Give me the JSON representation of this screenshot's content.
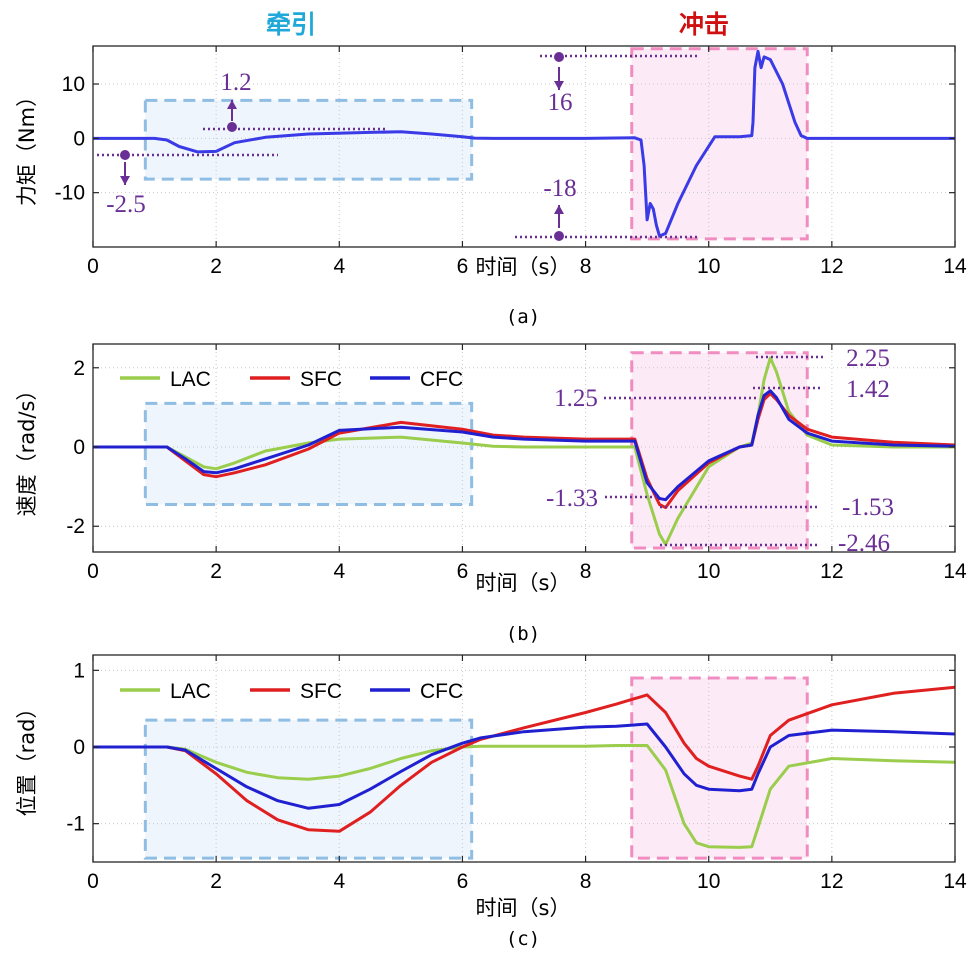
{
  "colors": {
    "torque": "#3a3ae6",
    "LAC": "#9acd4c",
    "SFC": "#e02020",
    "CFC": "#2020d0",
    "traction_box": "#8fbde3",
    "traction_fill": "#eef5fc",
    "impact_box": "#f08cc0",
    "impact_fill": "#fcebf6",
    "traction_title": "#1fa8d8",
    "impact_title": "#d01010",
    "annotation": "#6a2f94"
  },
  "titles": {
    "traction": "牵引",
    "impact": "冲击"
  },
  "chart_data": [
    {
      "type": "line",
      "subplot_label": "(a)",
      "xlabel": "时间（s）",
      "ylabel": "力矩（Nm）",
      "xlim": [
        0,
        14
      ],
      "ylim": [
        -20,
        17
      ],
      "xticks": [
        0,
        2,
        4,
        6,
        8,
        10,
        12,
        14
      ],
      "yticks": [
        -10,
        0,
        10
      ],
      "grid": true,
      "series": [
        {
          "key": "torque",
          "x": [
            0,
            1.0,
            1.2,
            1.4,
            1.7,
            2.0,
            2.3,
            2.8,
            3.5,
            4.5,
            5.0,
            5.5,
            6.0,
            6.2,
            6.5,
            8.0,
            8.8,
            8.9,
            8.95,
            9.0,
            9.05,
            9.1,
            9.15,
            9.2,
            9.3,
            9.5,
            9.8,
            10.1,
            10.5,
            10.7,
            10.72,
            10.75,
            10.8,
            10.85,
            10.9,
            11.0,
            11.2,
            11.4,
            11.5,
            11.6,
            12.0,
            14.0
          ],
          "y": [
            0,
            0,
            -0.3,
            -1.5,
            -2.5,
            -2.4,
            -0.8,
            0.2,
            0.8,
            1.1,
            1.2,
            0.8,
            0.3,
            0.05,
            0,
            0,
            0.1,
            -0.3,
            -5,
            -15,
            -12,
            -13,
            -16,
            -18,
            -17.5,
            -12,
            -5,
            0.3,
            0.3,
            0.5,
            3,
            13,
            16,
            13,
            15,
            14.5,
            10,
            3,
            0.5,
            0,
            0,
            0
          ]
        }
      ],
      "annotations": [
        {
          "text": "1.2",
          "x": 2.25,
          "y": 1.2
        },
        {
          "text": "-2.5",
          "x": 0.55,
          "y": -2.5
        },
        {
          "text": "16",
          "x": 7.55,
          "y": 16
        },
        {
          "text": "-18",
          "x": 7.55,
          "y": -18
        }
      ],
      "regions": [
        {
          "kind": "traction",
          "x": [
            0.85,
            6.15
          ],
          "y": [
            -7.5,
            7
          ]
        },
        {
          "kind": "impact",
          "x": [
            8.75,
            11.6
          ],
          "y": [
            -18.5,
            16.5
          ]
        }
      ]
    },
    {
      "type": "line",
      "subplot_label": "(b)",
      "xlabel": "时间（s）",
      "ylabel": "速度（rad/s）",
      "xlim": [
        0,
        14
      ],
      "ylim": [
        -2.65,
        2.6
      ],
      "xticks": [
        0,
        2,
        4,
        6,
        8,
        10,
        12,
        14
      ],
      "yticks": [
        -2,
        0,
        2
      ],
      "grid": true,
      "legend": "top-left",
      "series": [
        {
          "name": "LAC",
          "x": [
            0,
            1.2,
            1.5,
            1.8,
            2.0,
            2.3,
            2.8,
            3.5,
            4.0,
            5.0,
            6.0,
            6.5,
            7.0,
            8.0,
            8.7,
            8.8,
            9.0,
            9.2,
            9.3,
            9.5,
            10.0,
            10.5,
            10.7,
            10.8,
            10.9,
            11.0,
            11.1,
            11.3,
            11.6,
            12.0,
            13.0,
            14.0
          ],
          "y": [
            0,
            0,
            -0.25,
            -0.5,
            -0.55,
            -0.4,
            -0.1,
            0.1,
            0.2,
            0.25,
            0.1,
            0.02,
            0,
            0,
            0,
            0,
            -1.2,
            -2.2,
            -2.46,
            -1.8,
            -0.5,
            0,
            0.1,
            0.8,
            1.7,
            2.25,
            1.9,
            0.9,
            0.3,
            0.05,
            0,
            0
          ]
        },
        {
          "name": "SFC",
          "x": [
            0,
            1.2,
            1.5,
            1.8,
            2.0,
            2.3,
            2.8,
            3.5,
            4.0,
            5.0,
            6.0,
            6.5,
            7.0,
            8.0,
            8.7,
            8.8,
            9.0,
            9.2,
            9.3,
            9.5,
            10.0,
            10.5,
            10.7,
            10.8,
            10.9,
            11.0,
            11.1,
            11.3,
            11.6,
            12.0,
            13.0,
            14.0
          ],
          "y": [
            0,
            0,
            -0.35,
            -0.7,
            -0.75,
            -0.65,
            -0.45,
            -0.05,
            0.35,
            0.62,
            0.45,
            0.3,
            0.25,
            0.2,
            0.2,
            0.2,
            -0.8,
            -1.45,
            -1.53,
            -1.1,
            -0.4,
            0,
            0.05,
            0.7,
            1.2,
            1.35,
            1.2,
            0.8,
            0.45,
            0.25,
            0.12,
            0.05
          ]
        },
        {
          "name": "CFC",
          "x": [
            0,
            1.2,
            1.5,
            1.8,
            2.0,
            2.3,
            2.8,
            3.5,
            4.0,
            5.0,
            6.0,
            6.5,
            7.0,
            8.0,
            8.7,
            8.8,
            9.0,
            9.2,
            9.3,
            9.5,
            10.0,
            10.5,
            10.7,
            10.8,
            10.9,
            11.0,
            11.1,
            11.3,
            11.6,
            12.0,
            13.0,
            14.0
          ],
          "y": [
            0,
            0,
            -0.3,
            -0.62,
            -0.65,
            -0.55,
            -0.3,
            0.05,
            0.42,
            0.5,
            0.38,
            0.25,
            0.2,
            0.15,
            0.15,
            0.15,
            -0.9,
            -1.3,
            -1.33,
            -1.0,
            -0.35,
            0,
            0.05,
            0.8,
            1.3,
            1.42,
            1.25,
            0.7,
            0.35,
            0.15,
            0.05,
            0.02
          ]
        }
      ],
      "annotations": [
        {
          "text": "2.25",
          "x": 12.0,
          "y": 2.25
        },
        {
          "text": "1.42",
          "x": 12.0,
          "y": 1.42
        },
        {
          "text": "1.25",
          "x": 7.5,
          "y": 1.25
        },
        {
          "text": "-1.33",
          "x": 7.5,
          "y": -1.33
        },
        {
          "text": "-1.53",
          "x": 12.0,
          "y": -1.53
        },
        {
          "text": "-2.46",
          "x": 12.0,
          "y": -2.46
        }
      ],
      "regions": [
        {
          "kind": "traction",
          "x": [
            0.85,
            6.15
          ],
          "y": [
            -1.45,
            1.1
          ]
        },
        {
          "kind": "impact",
          "x": [
            8.75,
            11.6
          ],
          "y": [
            -2.55,
            2.38
          ]
        }
      ]
    },
    {
      "type": "line",
      "subplot_label": "(c)",
      "xlabel": "时间（s）",
      "ylabel": "位置（rad）",
      "xlim": [
        0,
        14
      ],
      "ylim": [
        -1.5,
        1.2
      ],
      "xticks": [
        0,
        2,
        4,
        6,
        8,
        10,
        12,
        14
      ],
      "yticks": [
        -1,
        0,
        1
      ],
      "grid": true,
      "legend": "top-left",
      "series": [
        {
          "name": "LAC",
          "x": [
            0,
            1.2,
            1.5,
            2.0,
            2.5,
            3.0,
            3.5,
            4.0,
            4.5,
            5.0,
            5.5,
            6.0,
            6.3,
            7.0,
            8.0,
            8.5,
            9.0,
            9.3,
            9.6,
            9.8,
            10.0,
            10.5,
            10.7,
            10.8,
            11.0,
            11.3,
            12.0,
            13.0,
            14.0
          ],
          "y": [
            0,
            0,
            -0.03,
            -0.2,
            -0.33,
            -0.4,
            -0.42,
            -0.38,
            -0.28,
            -0.15,
            -0.05,
            0,
            0.01,
            0.01,
            0.01,
            0.02,
            0.02,
            -0.3,
            -1.0,
            -1.25,
            -1.3,
            -1.31,
            -1.3,
            -1.05,
            -0.55,
            -0.25,
            -0.15,
            -0.18,
            -0.2
          ]
        },
        {
          "name": "SFC",
          "x": [
            0,
            1.2,
            1.5,
            2.0,
            2.5,
            3.0,
            3.5,
            4.0,
            4.5,
            5.0,
            5.5,
            6.0,
            6.3,
            7.0,
            8.0,
            8.5,
            9.0,
            9.3,
            9.6,
            9.8,
            10.0,
            10.5,
            10.7,
            10.8,
            11.0,
            11.3,
            12.0,
            13.0,
            14.0
          ],
          "y": [
            0,
            0,
            -0.05,
            -0.35,
            -0.7,
            -0.95,
            -1.08,
            -1.1,
            -0.85,
            -0.5,
            -0.2,
            0,
            0.1,
            0.25,
            0.45,
            0.56,
            0.68,
            0.45,
            0.05,
            -0.15,
            -0.25,
            -0.38,
            -0.42,
            -0.25,
            0.15,
            0.35,
            0.55,
            0.7,
            0.78
          ]
        },
        {
          "name": "CFC",
          "x": [
            0,
            1.2,
            1.5,
            2.0,
            2.5,
            3.0,
            3.5,
            4.0,
            4.5,
            5.0,
            5.5,
            6.0,
            6.3,
            7.0,
            8.0,
            8.5,
            9.0,
            9.3,
            9.6,
            9.8,
            10.0,
            10.5,
            10.7,
            10.8,
            11.0,
            11.3,
            12.0,
            13.0,
            14.0
          ],
          "y": [
            0,
            0,
            -0.04,
            -0.28,
            -0.52,
            -0.7,
            -0.8,
            -0.75,
            -0.55,
            -0.32,
            -0.1,
            0.05,
            0.12,
            0.2,
            0.26,
            0.27,
            0.3,
            0.0,
            -0.35,
            -0.5,
            -0.55,
            -0.57,
            -0.55,
            -0.35,
            0.0,
            0.15,
            0.22,
            0.2,
            0.17
          ]
        }
      ],
      "regions": [
        {
          "kind": "traction",
          "x": [
            0.85,
            6.15
          ],
          "y": [
            -1.45,
            0.35
          ]
        },
        {
          "kind": "impact",
          "x": [
            8.75,
            11.6
          ],
          "y": [
            -1.45,
            0.9
          ]
        }
      ]
    }
  ]
}
